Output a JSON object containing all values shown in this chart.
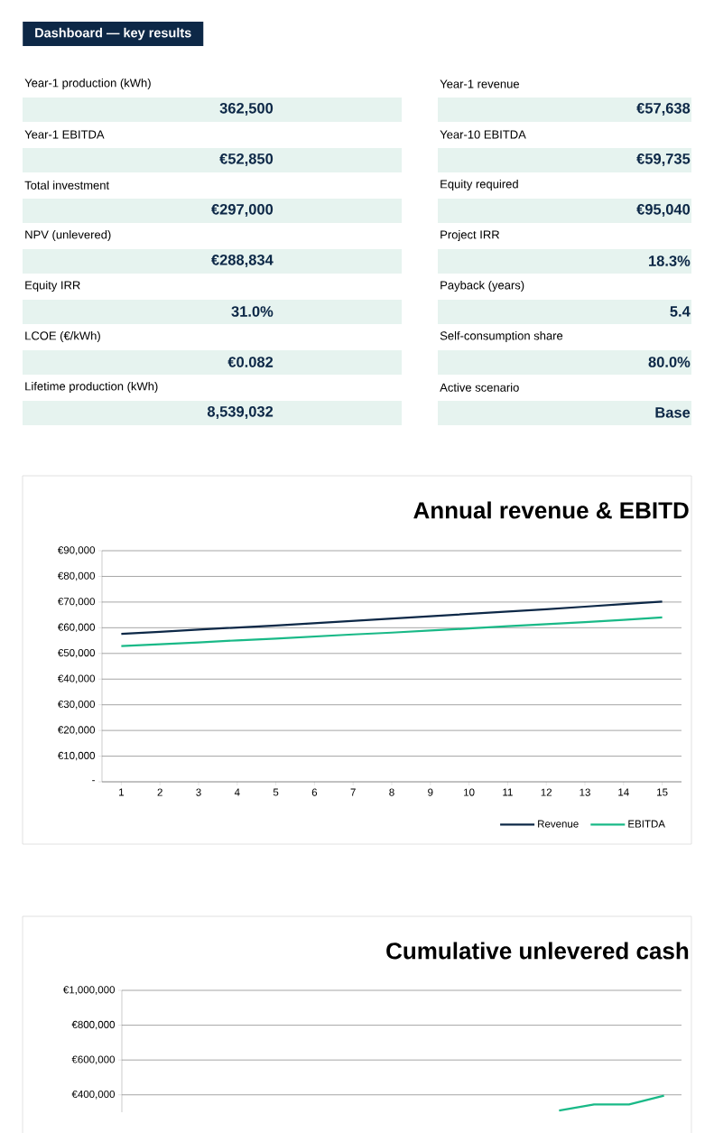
{
  "chart_data": [
    {
      "type": "other",
      "title": "Dashboard — key results",
      "annotations": [
        "Year-1 production (kWh)",
        "362,500",
        "Year-1 revenue",
        "€57,638",
        "Year-1 EBITDA",
        "€52,850",
        "Year-10 EBITDA",
        "€59,735",
        "Total investment",
        "€297,000",
        "Equity required",
        "€95,040",
        "NPV (unlevered)",
        "€288,834",
        "Project IRR",
        "18.3%",
        "Equity IRR",
        "31.0%",
        "Payback (years)",
        "5.4",
        "LCOE (€/kWh)",
        "€0.082",
        "Self-consumption share",
        "80.0%",
        "Lifetime production (kWh)",
        "8,539,032",
        "Active scenario",
        "Base"
      ]
    },
    {
      "type": "line",
      "title": "Annual revenue & EBITD",
      "categories": [
        "1",
        "2",
        "3",
        "4",
        "5",
        "6",
        "7",
        "8",
        "9",
        "10",
        "11",
        "12",
        "13",
        "14",
        "15"
      ],
      "series": [
        {
          "name": "Revenue",
          "color": "#0d2847",
          "values": [
            57600,
            58400,
            59300,
            60100,
            60900,
            61800,
            62700,
            63600,
            64500,
            65400,
            66300,
            67200,
            68200,
            69200,
            70200
          ]
        },
        {
          "name": "EBITDA",
          "color": "#19b987",
          "values": [
            52900,
            53600,
            54300,
            55100,
            55800,
            56600,
            57400,
            58100,
            58900,
            59700,
            60600,
            61400,
            62200,
            63100,
            64000
          ]
        }
      ],
      "ylim": [
        0,
        90000
      ],
      "yticks": [
        {
          "value": 0,
          "label": "-"
        },
        {
          "value": 10000,
          "label": "€10,000"
        },
        {
          "value": 20000,
          "label": "€20,000"
        },
        {
          "value": 30000,
          "label": "€30,000"
        },
        {
          "value": 40000,
          "label": "€40,000"
        },
        {
          "value": 50000,
          "label": "€50,000"
        },
        {
          "value": 60000,
          "label": "€60,000"
        },
        {
          "value": 70000,
          "label": "€70,000"
        },
        {
          "value": 80000,
          "label": "€80,000"
        },
        {
          "value": 90000,
          "label": "€90,000"
        }
      ],
      "grid": "y",
      "legend": "bottom"
    },
    {
      "type": "line",
      "title": "Cumulative unlevered cash",
      "categories": [
        null,
        null,
        null,
        null,
        null,
        null,
        null,
        null,
        null,
        null,
        null,
        null,
        null,
        null,
        null,
        null
      ],
      "series": [
        {
          "color": "#19b987",
          "values": [
            null,
            null,
            null,
            null,
            null,
            null,
            null,
            null,
            null,
            null,
            null,
            null,
            310000,
            345000,
            345000,
            395000
          ]
        }
      ],
      "ylim": [
        300000,
        1000000
      ],
      "yticks": [
        {
          "value": 400000,
          "label": "€400,000"
        },
        {
          "value": 600000,
          "label": "€600,000"
        },
        {
          "value": 800000,
          "label": "€800,000"
        },
        {
          "value": 1000000,
          "label": "€1,000,000"
        }
      ],
      "grid": "y",
      "tick_labels": "y"
    }
  ]
}
